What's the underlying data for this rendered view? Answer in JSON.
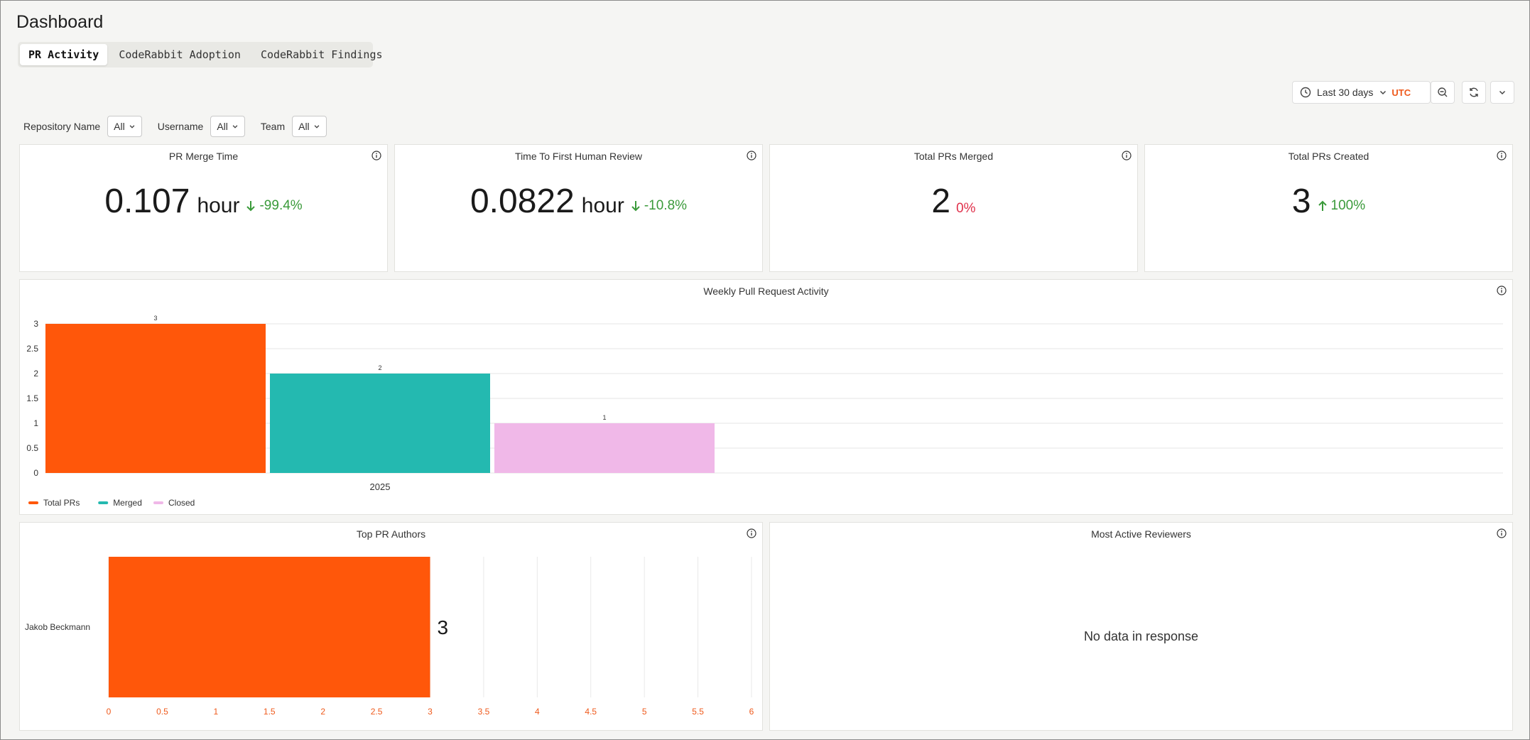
{
  "page": {
    "title": "Dashboard"
  },
  "tabs": [
    {
      "label": "PR Activity",
      "active": true
    },
    {
      "label": "CodeRabbit Adoption",
      "active": false
    },
    {
      "label": "CodeRabbit Findings",
      "active": false
    }
  ],
  "time_controls": {
    "range": "Last 30 days",
    "timezone": "UTC",
    "icons": [
      "clock-icon",
      "chevron-down-icon",
      "zoom-out-icon",
      "refresh-icon",
      "chevron-down-icon"
    ]
  },
  "filters": [
    {
      "label": "Repository Name",
      "value": "All"
    },
    {
      "label": "Username",
      "value": "All"
    },
    {
      "label": "Team",
      "value": "All"
    }
  ],
  "kpis": [
    {
      "title": "PR Merge Time",
      "value": "0.107",
      "unit": "hour",
      "delta": "-99.4%",
      "direction": "down",
      "color": "#3a9a3a"
    },
    {
      "title": "Time To First Human Review",
      "value": "0.0822",
      "unit": "hour",
      "delta": "-10.8%",
      "direction": "down",
      "color": "#3a9a3a"
    },
    {
      "title": "Total PRs Merged",
      "value": "2",
      "unit": "",
      "delta": "0%",
      "direction": "none",
      "color": "#e0314b"
    },
    {
      "title": "Total PRs Created",
      "value": "3",
      "unit": "",
      "delta": "100%",
      "direction": "up",
      "color": "#3a9a3a"
    }
  ],
  "weekly_chart": {
    "title": "Weekly Pull Request Activity"
  },
  "authors_chart": {
    "title": "Top PR Authors"
  },
  "reviewers_panel": {
    "title": "Most Active Reviewers",
    "empty_message": "No data in response"
  },
  "chart_data": [
    {
      "type": "bar",
      "title": "Weekly Pull Request Activity",
      "categories": [
        "2025"
      ],
      "series": [
        {
          "name": "Total PRs",
          "values": [
            3
          ],
          "color": "#ff570a"
        },
        {
          "name": "Merged",
          "values": [
            2
          ],
          "color": "#24b9b0"
        },
        {
          "name": "Closed",
          "values": [
            1
          ],
          "color": "#f0b8e8"
        }
      ],
      "yticks": [
        "0",
        "0.5",
        "1",
        "1.5",
        "2",
        "2.5",
        "3"
      ],
      "ylim": [
        0,
        3
      ],
      "grid": true,
      "legend": "bottom-left"
    },
    {
      "type": "bar",
      "orientation": "horizontal",
      "title": "Top PR Authors",
      "categories": [
        "Jakob Beckmann"
      ],
      "values": [
        3
      ],
      "color": "#ff570a",
      "xticks": [
        "0",
        "0.5",
        "1",
        "1.5",
        "2",
        "2.5",
        "3",
        "3.5",
        "4",
        "4.5",
        "5",
        "5.5",
        "6"
      ],
      "xlim": [
        0,
        6
      ],
      "grid": true
    }
  ]
}
